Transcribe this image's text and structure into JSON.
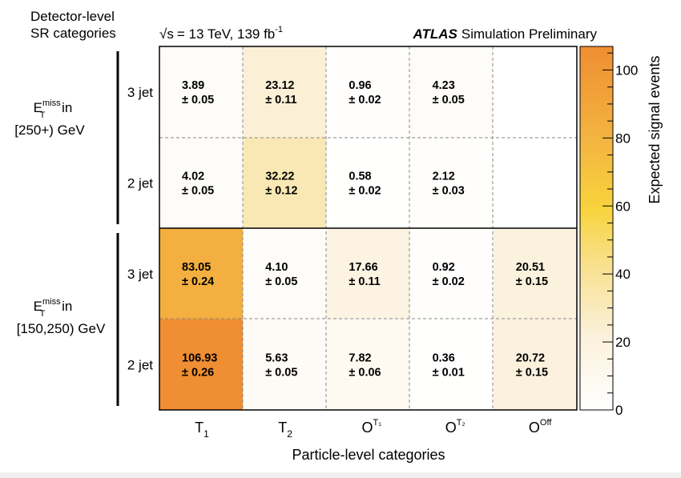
{
  "chart_data": {
    "type": "heatmap",
    "header_left": [
      "Detector-level",
      "SR categories"
    ],
    "energy_label": "= 13 TeV, 139 fb",
    "energy_sqrt": "√s",
    "energy_sup": "-1",
    "atlas_bold": "ATLAS",
    "atlas_rest": "Simulation Preliminary",
    "xlabel": "Particle-level categories",
    "colorbar_label": "Expected signal events",
    "zlim": [
      0,
      106.93
    ],
    "colorbar_ticks": [
      "0",
      "20",
      "40",
      "60",
      "80",
      "100"
    ],
    "colorbar_tick_values": [
      0,
      20,
      40,
      60,
      80,
      100
    ],
    "x_categories": [
      {
        "main": "T",
        "sub": "1",
        "sup": ""
      },
      {
        "main": "T",
        "sub": "2",
        "sup": ""
      },
      {
        "main": "O",
        "sub": "",
        "sup": "T₁"
      },
      {
        "main": "O",
        "sub": "",
        "sup": "T₂"
      },
      {
        "main": "O",
        "sub": "",
        "sup": "Off"
      }
    ],
    "row_labels": [
      "3 jet",
      "2 jet",
      "3 jet",
      "2 jet"
    ],
    "group_labels": [
      {
        "pre": "E",
        "sup": "miss",
        "sub": "T",
        "post": " in",
        "range": "[250+) GeV"
      },
      {
        "pre": "E",
        "sup": "miss",
        "sub": "T",
        "post": " in",
        "range": "[150,250) GeV"
      }
    ],
    "cells": [
      [
        {
          "v": 3.89,
          "e": "± 0.05"
        },
        {
          "v": 23.12,
          "e": "± 0.11"
        },
        {
          "v": 0.96,
          "e": "± 0.02"
        },
        {
          "v": 4.23,
          "e": "± 0.05"
        },
        null
      ],
      [
        {
          "v": 4.02,
          "e": "± 0.05"
        },
        {
          "v": 32.22,
          "e": "± 0.12"
        },
        {
          "v": 0.58,
          "e": "± 0.02"
        },
        {
          "v": 2.12,
          "e": "± 0.03"
        },
        null
      ],
      [
        {
          "v": 83.05,
          "e": "± 0.24"
        },
        {
          "v": 4.1,
          "e": "± 0.05"
        },
        {
          "v": 17.66,
          "e": "± 0.11"
        },
        {
          "v": 0.92,
          "e": "± 0.02"
        },
        {
          "v": 20.51,
          "e": "± 0.15"
        }
      ],
      [
        {
          "v": 106.93,
          "e": "± 0.26"
        },
        {
          "v": 5.63,
          "e": "± 0.05"
        },
        {
          "v": 7.82,
          "e": "± 0.06"
        },
        {
          "v": 0.36,
          "e": "± 0.01"
        },
        {
          "v": 20.72,
          "e": "± 0.15"
        }
      ]
    ]
  }
}
